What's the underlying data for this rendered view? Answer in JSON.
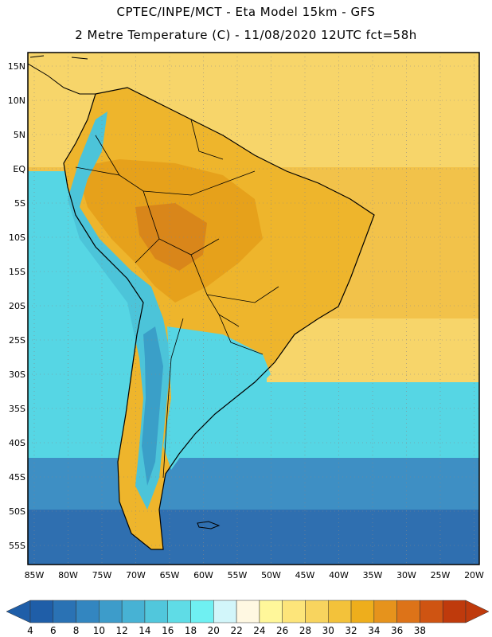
{
  "header": {
    "line1": "CPTEC/INPE/MCT -  Eta Model 15km - GFS",
    "line2": "2 Metre Temperature (C) - 11/08/2020 12UTC fct=58h"
  },
  "map": {
    "lat_labels": [
      "15N",
      "10N",
      "5N",
      "EQ",
      "5S",
      "10S",
      "15S",
      "20S",
      "25S",
      "30S",
      "35S",
      "40S",
      "45S",
      "50S",
      "55S"
    ],
    "lon_labels": [
      "85W",
      "80W",
      "75W",
      "70W",
      "65W",
      "60W",
      "55W",
      "50W",
      "45W",
      "40W",
      "35W",
      "30W",
      "25W",
      "20W"
    ],
    "colors": {
      "ocean_north": "#f2c24a",
      "ocean_north_light": "#f7d56a",
      "land_hot": "#e6a11b",
      "land_hotter": "#d9861a",
      "land_warm": "#eeb52c",
      "andes": "#4cc4d9",
      "andes_cold": "#3a9fc8",
      "ocean_pacific": "#56d6e4",
      "ocean_south": "#3e8fc4",
      "ocean_deep": "#2f6fb0",
      "border": "#000000",
      "grid": "#888888"
    }
  },
  "colorbar": {
    "labels": [
      "4",
      "6",
      "8",
      "10",
      "12",
      "14",
      "16",
      "18",
      "20",
      "22",
      "24",
      "26",
      "28",
      "30",
      "32",
      "34",
      "36",
      "38"
    ],
    "colors": [
      "#1f5ea8",
      "#2a72b4",
      "#3386c0",
      "#3d9cca",
      "#47b2d4",
      "#51c7dc",
      "#5fdce6",
      "#6ff0f2",
      "#d2f6fa",
      "#fff8e2",
      "#fff79a",
      "#fde57a",
      "#f8d45e",
      "#f3c23a",
      "#eeae1c",
      "#e6931c",
      "#dd7318",
      "#cf5412",
      "#bf3a0c"
    ]
  }
}
